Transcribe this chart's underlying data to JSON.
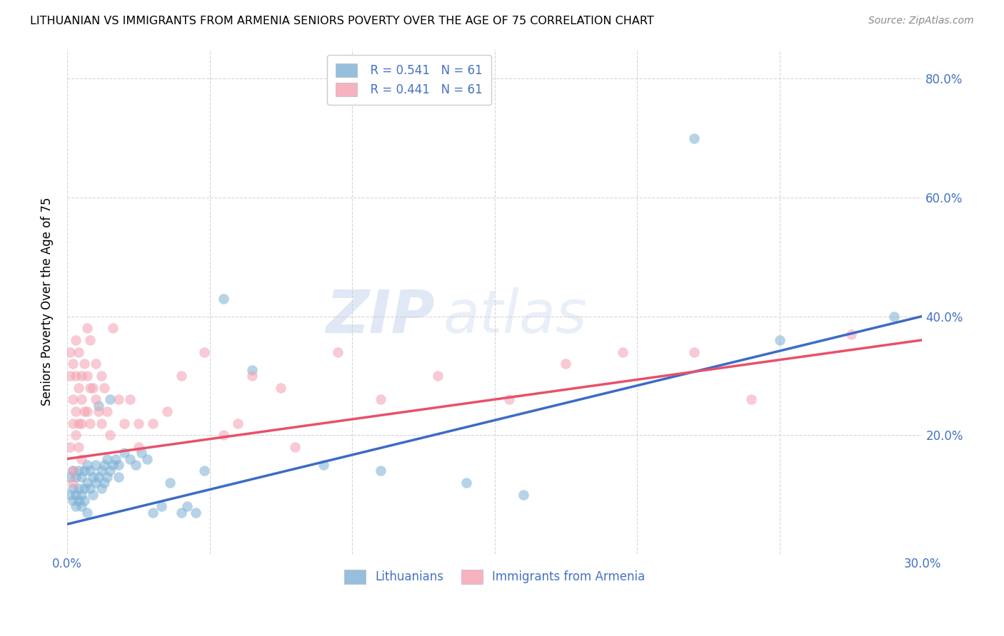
{
  "title": "LITHUANIAN VS IMMIGRANTS FROM ARMENIA SENIORS POVERTY OVER THE AGE OF 75 CORRELATION CHART",
  "source": "Source: ZipAtlas.com",
  "ylabel": "Seniors Poverty Over the Age of 75",
  "xlim": [
    0.0,
    0.3
  ],
  "ylim": [
    0.0,
    0.85
  ],
  "ytick_vals": [
    0.0,
    0.2,
    0.4,
    0.6,
    0.8
  ],
  "ytick_labels_right": [
    "",
    "20.0%",
    "40.0%",
    "60.0%",
    "80.0%"
  ],
  "xtick_vals": [
    0.0,
    0.05,
    0.1,
    0.15,
    0.2,
    0.25,
    0.3
  ],
  "xtick_labels": [
    "0.0%",
    "",
    "",
    "",
    "",
    "",
    "30.0%"
  ],
  "blue_color": "#7BAFD4",
  "pink_color": "#F4A0B0",
  "blue_line_color": "#3B6BC8",
  "pink_line_color": "#E8506A",
  "legend_text_color": "#4472C4",
  "R_blue": "0.541",
  "N_blue": "61",
  "R_pink": "0.441",
  "N_pink": "61",
  "legend_labels": [
    "Lithuanians",
    "Immigrants from Armenia"
  ],
  "blue_scatter": [
    [
      0.001,
      0.13
    ],
    [
      0.001,
      0.1
    ],
    [
      0.002,
      0.14
    ],
    [
      0.002,
      0.11
    ],
    [
      0.002,
      0.09
    ],
    [
      0.003,
      0.13
    ],
    [
      0.003,
      0.1
    ],
    [
      0.003,
      0.08
    ],
    [
      0.004,
      0.14
    ],
    [
      0.004,
      0.11
    ],
    [
      0.004,
      0.09
    ],
    [
      0.005,
      0.13
    ],
    [
      0.005,
      0.1
    ],
    [
      0.005,
      0.08
    ],
    [
      0.006,
      0.14
    ],
    [
      0.006,
      0.11
    ],
    [
      0.006,
      0.09
    ],
    [
      0.007,
      0.15
    ],
    [
      0.007,
      0.12
    ],
    [
      0.007,
      0.07
    ],
    [
      0.008,
      0.14
    ],
    [
      0.008,
      0.11
    ],
    [
      0.009,
      0.13
    ],
    [
      0.009,
      0.1
    ],
    [
      0.01,
      0.15
    ],
    [
      0.01,
      0.12
    ],
    [
      0.011,
      0.25
    ],
    [
      0.011,
      0.13
    ],
    [
      0.012,
      0.14
    ],
    [
      0.012,
      0.11
    ],
    [
      0.013,
      0.15
    ],
    [
      0.013,
      0.12
    ],
    [
      0.014,
      0.16
    ],
    [
      0.014,
      0.13
    ],
    [
      0.015,
      0.26
    ],
    [
      0.015,
      0.14
    ],
    [
      0.016,
      0.15
    ],
    [
      0.017,
      0.16
    ],
    [
      0.018,
      0.15
    ],
    [
      0.018,
      0.13
    ],
    [
      0.02,
      0.17
    ],
    [
      0.022,
      0.16
    ],
    [
      0.024,
      0.15
    ],
    [
      0.026,
      0.17
    ],
    [
      0.028,
      0.16
    ],
    [
      0.03,
      0.07
    ],
    [
      0.033,
      0.08
    ],
    [
      0.036,
      0.12
    ],
    [
      0.04,
      0.07
    ],
    [
      0.042,
      0.08
    ],
    [
      0.045,
      0.07
    ],
    [
      0.048,
      0.14
    ],
    [
      0.055,
      0.43
    ],
    [
      0.065,
      0.31
    ],
    [
      0.09,
      0.15
    ],
    [
      0.11,
      0.14
    ],
    [
      0.14,
      0.12
    ],
    [
      0.16,
      0.1
    ],
    [
      0.22,
      0.7
    ],
    [
      0.25,
      0.36
    ],
    [
      0.29,
      0.4
    ]
  ],
  "pink_scatter": [
    [
      0.001,
      0.34
    ],
    [
      0.001,
      0.3
    ],
    [
      0.001,
      0.18
    ],
    [
      0.002,
      0.32
    ],
    [
      0.002,
      0.26
    ],
    [
      0.002,
      0.22
    ],
    [
      0.002,
      0.14
    ],
    [
      0.003,
      0.36
    ],
    [
      0.003,
      0.3
    ],
    [
      0.003,
      0.24
    ],
    [
      0.003,
      0.2
    ],
    [
      0.004,
      0.34
    ],
    [
      0.004,
      0.28
    ],
    [
      0.004,
      0.22
    ],
    [
      0.004,
      0.18
    ],
    [
      0.005,
      0.3
    ],
    [
      0.005,
      0.26
    ],
    [
      0.005,
      0.22
    ],
    [
      0.005,
      0.16
    ],
    [
      0.006,
      0.32
    ],
    [
      0.006,
      0.24
    ],
    [
      0.007,
      0.38
    ],
    [
      0.007,
      0.3
    ],
    [
      0.007,
      0.24
    ],
    [
      0.008,
      0.36
    ],
    [
      0.008,
      0.28
    ],
    [
      0.008,
      0.22
    ],
    [
      0.009,
      0.28
    ],
    [
      0.01,
      0.32
    ],
    [
      0.01,
      0.26
    ],
    [
      0.011,
      0.24
    ],
    [
      0.012,
      0.3
    ],
    [
      0.012,
      0.22
    ],
    [
      0.013,
      0.28
    ],
    [
      0.014,
      0.24
    ],
    [
      0.015,
      0.2
    ],
    [
      0.016,
      0.38
    ],
    [
      0.018,
      0.26
    ],
    [
      0.02,
      0.22
    ],
    [
      0.022,
      0.26
    ],
    [
      0.025,
      0.22
    ],
    [
      0.025,
      0.18
    ],
    [
      0.03,
      0.22
    ],
    [
      0.035,
      0.24
    ],
    [
      0.04,
      0.3
    ],
    [
      0.048,
      0.34
    ],
    [
      0.055,
      0.2
    ],
    [
      0.06,
      0.22
    ],
    [
      0.065,
      0.3
    ],
    [
      0.075,
      0.28
    ],
    [
      0.08,
      0.18
    ],
    [
      0.095,
      0.34
    ],
    [
      0.11,
      0.26
    ],
    [
      0.13,
      0.3
    ],
    [
      0.155,
      0.26
    ],
    [
      0.175,
      0.32
    ],
    [
      0.195,
      0.34
    ],
    [
      0.22,
      0.34
    ],
    [
      0.24,
      0.26
    ],
    [
      0.275,
      0.37
    ],
    [
      0.002,
      0.12
    ]
  ],
  "blue_line": [
    [
      0.0,
      0.05
    ],
    [
      0.3,
      0.4
    ]
  ],
  "pink_line": [
    [
      0.0,
      0.16
    ],
    [
      0.3,
      0.36
    ]
  ]
}
